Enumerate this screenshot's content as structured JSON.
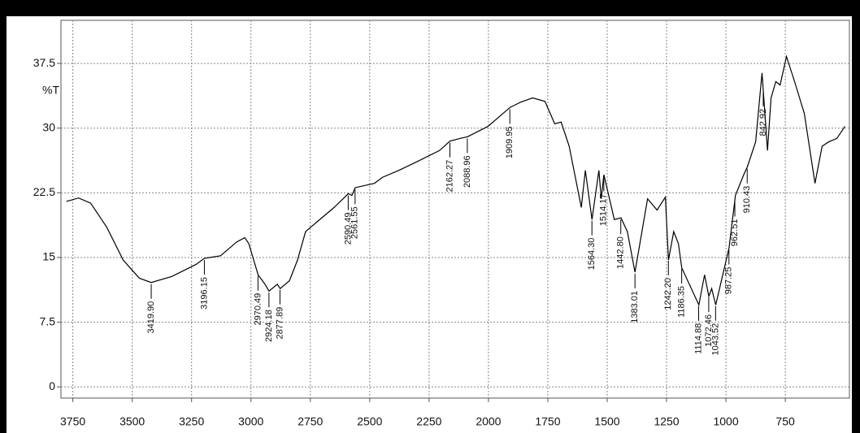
{
  "chart_data": {
    "type": "line",
    "ylabel": "%T",
    "xlim": [
      3800,
      480
    ],
    "ylim": [
      -1.3,
      42.5
    ],
    "xticks": [
      3750,
      3500,
      3250,
      3000,
      2750,
      2500,
      2250,
      2000,
      1750,
      1500,
      1250,
      1000,
      750
    ],
    "yticks": [
      0,
      7.5,
      15,
      22.5,
      30,
      37.5
    ],
    "grid": true,
    "series": [
      {
        "color": "#000000",
        "x": [
          3777,
          3726,
          3675,
          3607,
          3538,
          3470,
          3420,
          3333,
          3231,
          3196,
          3128,
          3060,
          3026,
          3009,
          2970,
          2941,
          2924,
          2889,
          2877,
          2838,
          2804,
          2770,
          2719,
          2650,
          2590,
          2575,
          2561,
          2480,
          2446,
          2377,
          2309,
          2206,
          2162,
          2120,
          2088,
          2002,
          1909,
          1865,
          1814,
          1762,
          1721,
          1694,
          1660,
          1609,
          1592,
          1564,
          1535,
          1525,
          1514,
          1470,
          1442,
          1415,
          1383,
          1330,
          1290,
          1255,
          1242,
          1220,
          1200,
          1186,
          1114,
          1090,
          1072,
          1060,
          1043,
          987,
          960,
          925,
          910,
          875,
          848,
          825,
          810,
          790,
          772,
          745,
          711,
          670,
          625,
          595,
          568,
          533,
          499
        ],
        "values": [
          21.5,
          21.9,
          21.3,
          18.5,
          14.7,
          12.6,
          12.1,
          12.8,
          14.2,
          14.9,
          15.2,
          16.8,
          17.3,
          16.6,
          13.0,
          11.9,
          11.1,
          11.9,
          11.4,
          12.3,
          14.7,
          18.0,
          19.2,
          20.8,
          22.4,
          22.2,
          23.1,
          23.6,
          24.3,
          25.1,
          26.0,
          27.4,
          28.5,
          28.8,
          29.0,
          30.2,
          32.4,
          33.0,
          33.5,
          33.1,
          30.5,
          30.7,
          27.9,
          20.8,
          25.1,
          19.4,
          25.1,
          21.8,
          24.6,
          19.4,
          19.6,
          18.0,
          13.3,
          21.8,
          20.5,
          22.0,
          14.7,
          18.0,
          16.6,
          13.8,
          9.5,
          13.0,
          10.5,
          11.4,
          9.5,
          16.1,
          22.2,
          24.6,
          25.5,
          28.4,
          36.4,
          27.4,
          33.5,
          35.4,
          35.0,
          38.3,
          35.4,
          31.7,
          23.6,
          27.9,
          28.4,
          28.8,
          30.2
        ]
      }
    ],
    "annotations": [
      {
        "value": 3419.9,
        "label": "3419.90"
      },
      {
        "value": 3196.15,
        "label": "3196.15"
      },
      {
        "value": 2970.49,
        "label": "2970.49"
      },
      {
        "value": 2924.18,
        "label": "2924.18"
      },
      {
        "value": 2877.89,
        "label": "2877.89"
      },
      {
        "value": 2590.49,
        "label": "2590.49"
      },
      {
        "value": 2561.55,
        "label": "2561.55"
      },
      {
        "value": 2162.27,
        "label": "2162.27"
      },
      {
        "value": 2088.96,
        "label": "2088.96"
      },
      {
        "value": 1909.95,
        "label": "1909.95"
      },
      {
        "value": 1564.3,
        "label": "1564.30"
      },
      {
        "value": 1514.17,
        "label": "1514.17"
      },
      {
        "value": 1442.8,
        "label": "1442.80"
      },
      {
        "value": 1383.01,
        "label": "1383.01"
      },
      {
        "value": 1242.2,
        "label": "1242.20"
      },
      {
        "value": 1186.35,
        "label": "1186.35"
      },
      {
        "value": 1114.88,
        "label": "1114.88"
      },
      {
        "value": 1072.46,
        "label": "1072.46"
      },
      {
        "value": 1043.52,
        "label": "1043.52"
      },
      {
        "value": 987.25,
        "label": "987.25"
      },
      {
        "value": 962.51,
        "label": "962.51"
      },
      {
        "value": 910.43,
        "label": "910.43"
      },
      {
        "value": 842.92,
        "label": "842.92"
      }
    ]
  }
}
